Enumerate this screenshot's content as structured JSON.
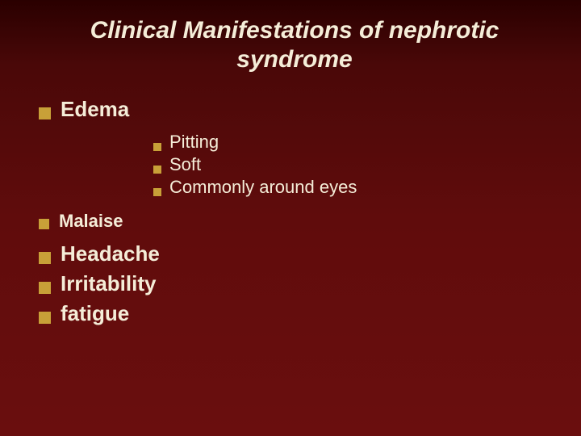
{
  "slide": {
    "title": "Clinical Manifestations of nephrotic syndrome",
    "background_gradient": [
      "#2a0000",
      "#4a0808",
      "#600c0c",
      "#6a0e0e"
    ],
    "title_color": "#f5edd8",
    "text_color": "#f5edd8",
    "bullet_marker_color": "#c8a038",
    "title_fontsize": 30,
    "l1_fontsize": 26,
    "l1_small_fontsize": 22,
    "l2_fontsize": 22,
    "font_family": "Verdana",
    "items": [
      {
        "level": 1,
        "text": "Edema",
        "size": "normal"
      },
      {
        "level": 2,
        "text": "Pitting"
      },
      {
        "level": 2,
        "text": "Soft"
      },
      {
        "level": 2,
        "text": "Commonly around eyes"
      },
      {
        "level": 1,
        "text": "Malaise",
        "size": "small"
      },
      {
        "level": 1,
        "text": "Headache",
        "size": "normal"
      },
      {
        "level": 1,
        "text": "Irritability",
        "size": "normal"
      },
      {
        "level": 1,
        "text": "fatigue",
        "size": "normal"
      }
    ]
  }
}
